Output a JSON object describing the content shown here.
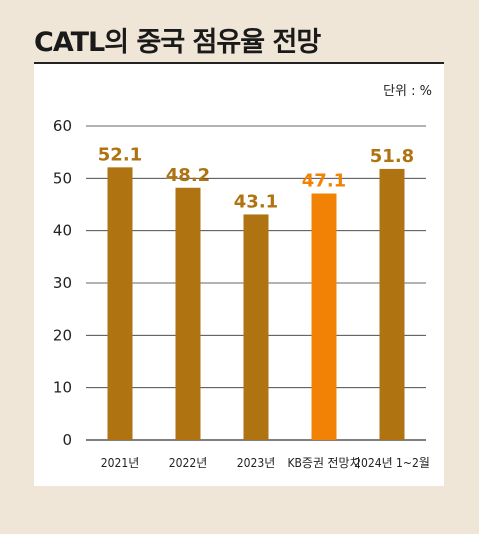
{
  "header": {
    "title": "CATL의 중국 점유율 전망",
    "unit": "단위 : %"
  },
  "colors": {
    "bar": "#b07312",
    "highlight": "#f28205",
    "label": "#b07312",
    "highlight_label": "#f28205",
    "grid": "#333333"
  },
  "chart_data": {
    "type": "bar",
    "title": "CATL의 중국 점유율 전망",
    "xlabel": "",
    "ylabel": "",
    "unit": "단위 : %",
    "categories": [
      "2021년",
      "2022년",
      "2023년",
      "KB증권 전망치",
      "2024년 1~2월"
    ],
    "values": [
      52.1,
      48.2,
      43.1,
      47.1,
      51.8
    ],
    "value_labels": [
      "52.1",
      "48.2",
      "43.1",
      "47.1",
      "51.8"
    ],
    "highlight_index": 3,
    "ylim": [
      0,
      60
    ],
    "yticks": [
      0,
      10,
      20,
      30,
      40,
      50,
      60
    ],
    "grid": true
  }
}
